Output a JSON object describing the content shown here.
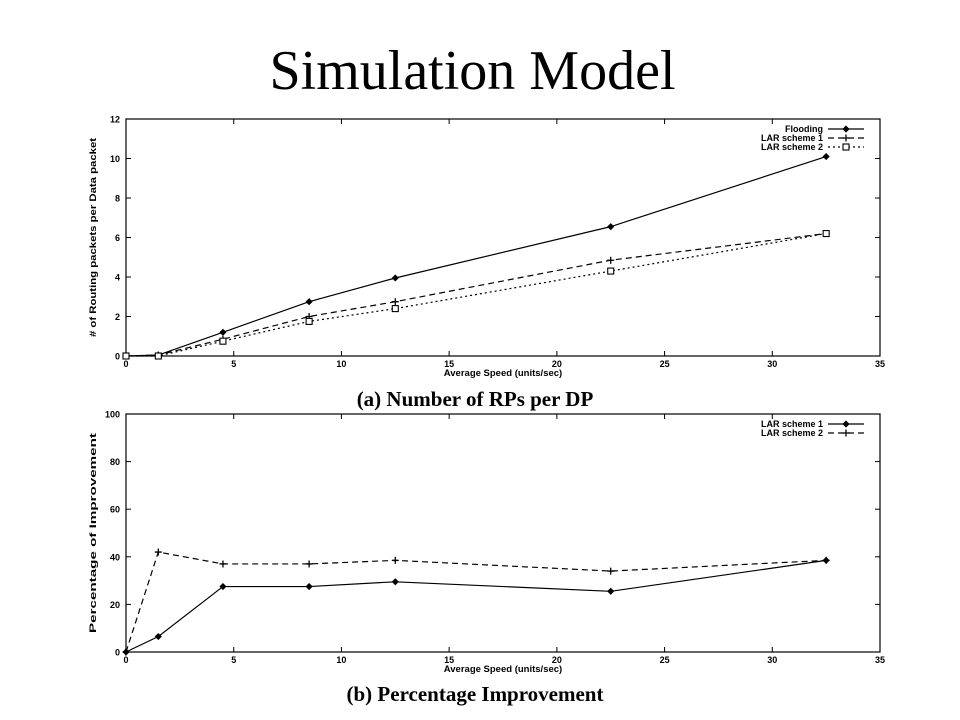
{
  "slide": {
    "title": "Simulation Model"
  },
  "chart_data": [
    {
      "type": "line",
      "caption": "(a) Number of RPs per DP",
      "xlabel": "Average Speed (units/sec)",
      "ylabel": "# of Routing packets per Data packet",
      "xlim": [
        0,
        35
      ],
      "ylim": [
        0,
        12
      ],
      "xticks": [
        0,
        5,
        10,
        15,
        20,
        25,
        30,
        35
      ],
      "yticks": [
        0,
        2,
        4,
        6,
        8,
        10,
        12
      ],
      "legend_position": "top-right",
      "grid": false,
      "x": [
        0,
        1.5,
        4.5,
        8.5,
        12.5,
        22.5,
        32.5
      ],
      "series": [
        {
          "name": "Flooding",
          "values": [
            0,
            0.05,
            1.2,
            2.75,
            3.95,
            6.55,
            10.1
          ],
          "dash": "solid",
          "marker": "diamond"
        },
        {
          "name": "LAR scheme 1",
          "values": [
            0,
            0.05,
            0.85,
            2.0,
            2.75,
            4.85,
            6.2
          ],
          "dash": "dashed",
          "marker": "plus"
        },
        {
          "name": "LAR scheme 2",
          "values": [
            0,
            0.0,
            0.75,
            1.75,
            2.4,
            4.3,
            6.2
          ],
          "dash": "dotted",
          "marker": "square"
        }
      ]
    },
    {
      "type": "line",
      "caption": "(b) Percentage Improvement",
      "xlabel": "Average Speed (units/sec)",
      "ylabel": "Percentage of Improvement",
      "xlim": [
        0,
        35
      ],
      "ylim": [
        0,
        100
      ],
      "xticks": [
        0,
        5,
        10,
        15,
        20,
        25,
        30,
        35
      ],
      "yticks": [
        0,
        20,
        40,
        60,
        80,
        100
      ],
      "legend_position": "top-right",
      "grid": false,
      "x": [
        0,
        1.5,
        4.5,
        8.5,
        12.5,
        22.5,
        32.5
      ],
      "series": [
        {
          "name": "LAR scheme 1",
          "values": [
            0,
            6.5,
            27.5,
            27.5,
            29.5,
            25.5,
            38.5
          ],
          "dash": "solid",
          "marker": "diamond"
        },
        {
          "name": "LAR scheme 2",
          "values": [
            0,
            42,
            37,
            37,
            38.5,
            34,
            38.5
          ],
          "dash": "dashed",
          "marker": "plus"
        }
      ]
    }
  ]
}
